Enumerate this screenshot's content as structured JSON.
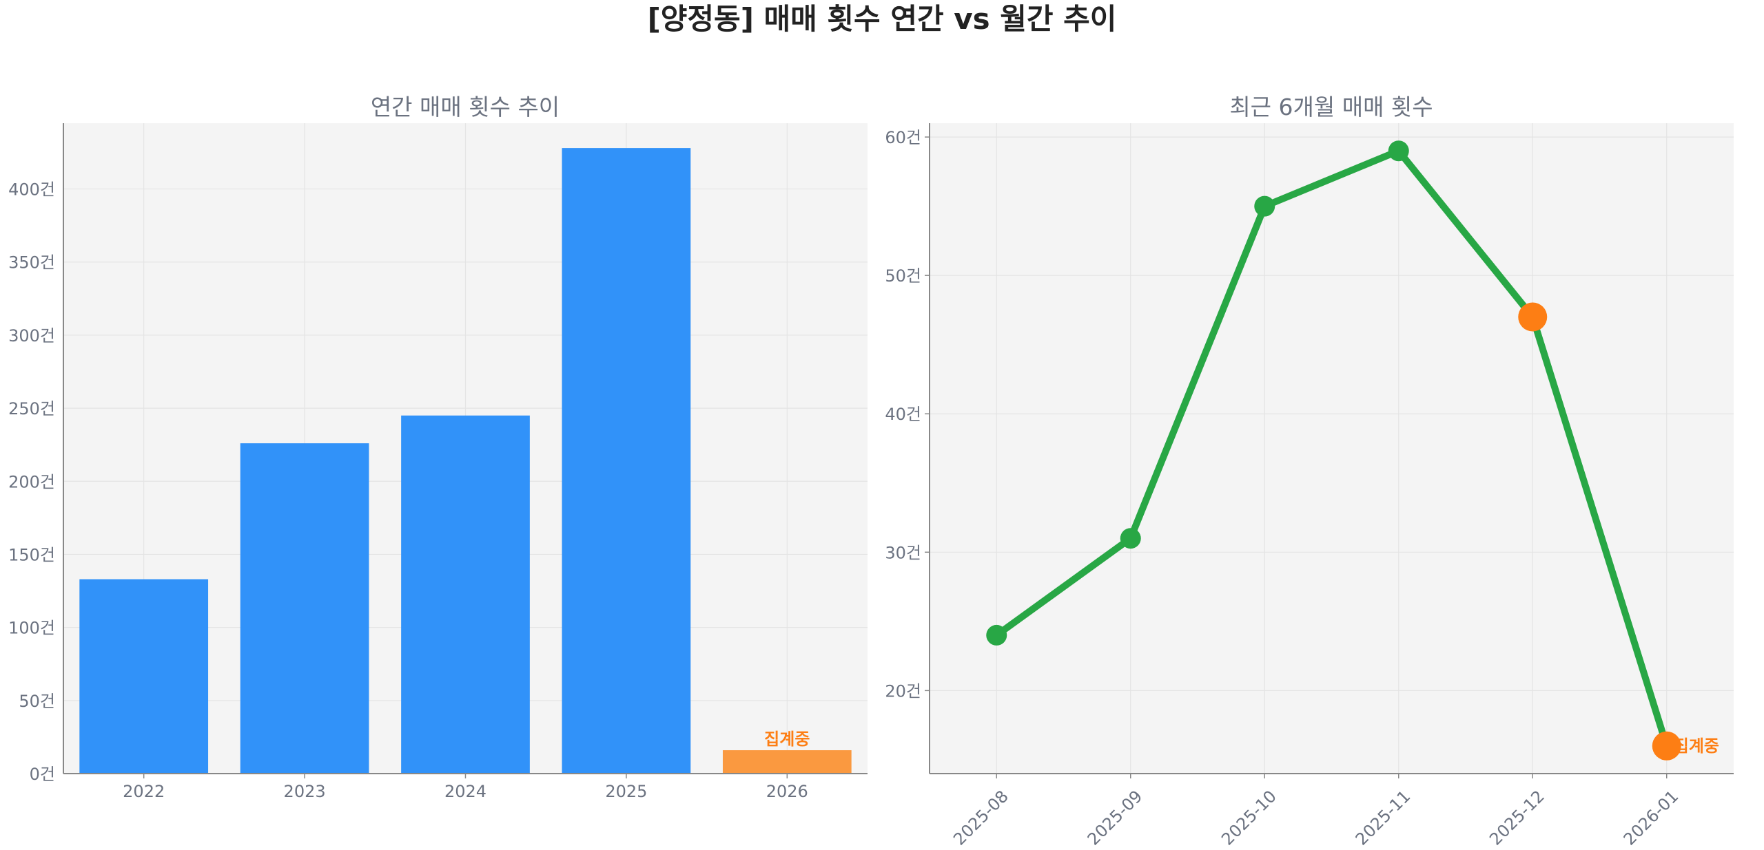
{
  "suptitle": "[양정동] 매매 횟수 연간 vs 월간 추이",
  "colors": {
    "bar": "#3192f9",
    "bar_partial": "#fa9940",
    "line": "#28a745",
    "highlight": "#fd7e14",
    "axes_bg": "#f4f4f4",
    "grid": "#e4e4e4",
    "text": "#6b7280"
  },
  "chart_data": [
    {
      "type": "bar",
      "title": "연간 매매 횟수 추이",
      "categories": [
        "2022",
        "2023",
        "2024",
        "2025",
        "2026"
      ],
      "values": [
        133,
        226,
        245,
        428,
        16
      ],
      "ylim": [
        0,
        445
      ],
      "yticks": [
        0,
        50,
        100,
        150,
        200,
        250,
        300,
        350,
        400
      ],
      "tick_suffix": "건",
      "partial_index": 4,
      "partial_label": "집계중",
      "grid": true
    },
    {
      "type": "line",
      "title": "최근 6개월 매매 횟수",
      "x": [
        "2025-08",
        "2025-09",
        "2025-10",
        "2025-11",
        "2025-12",
        "2026-01"
      ],
      "values": [
        24,
        31,
        55,
        59,
        47,
        16
      ],
      "ylim": [
        14,
        61
      ],
      "yticks": [
        20,
        30,
        40,
        50,
        60
      ],
      "tick_suffix": "건",
      "highlight_indices": [
        4,
        5
      ],
      "partial_index": 5,
      "partial_label": "집계중",
      "grid": true
    }
  ]
}
